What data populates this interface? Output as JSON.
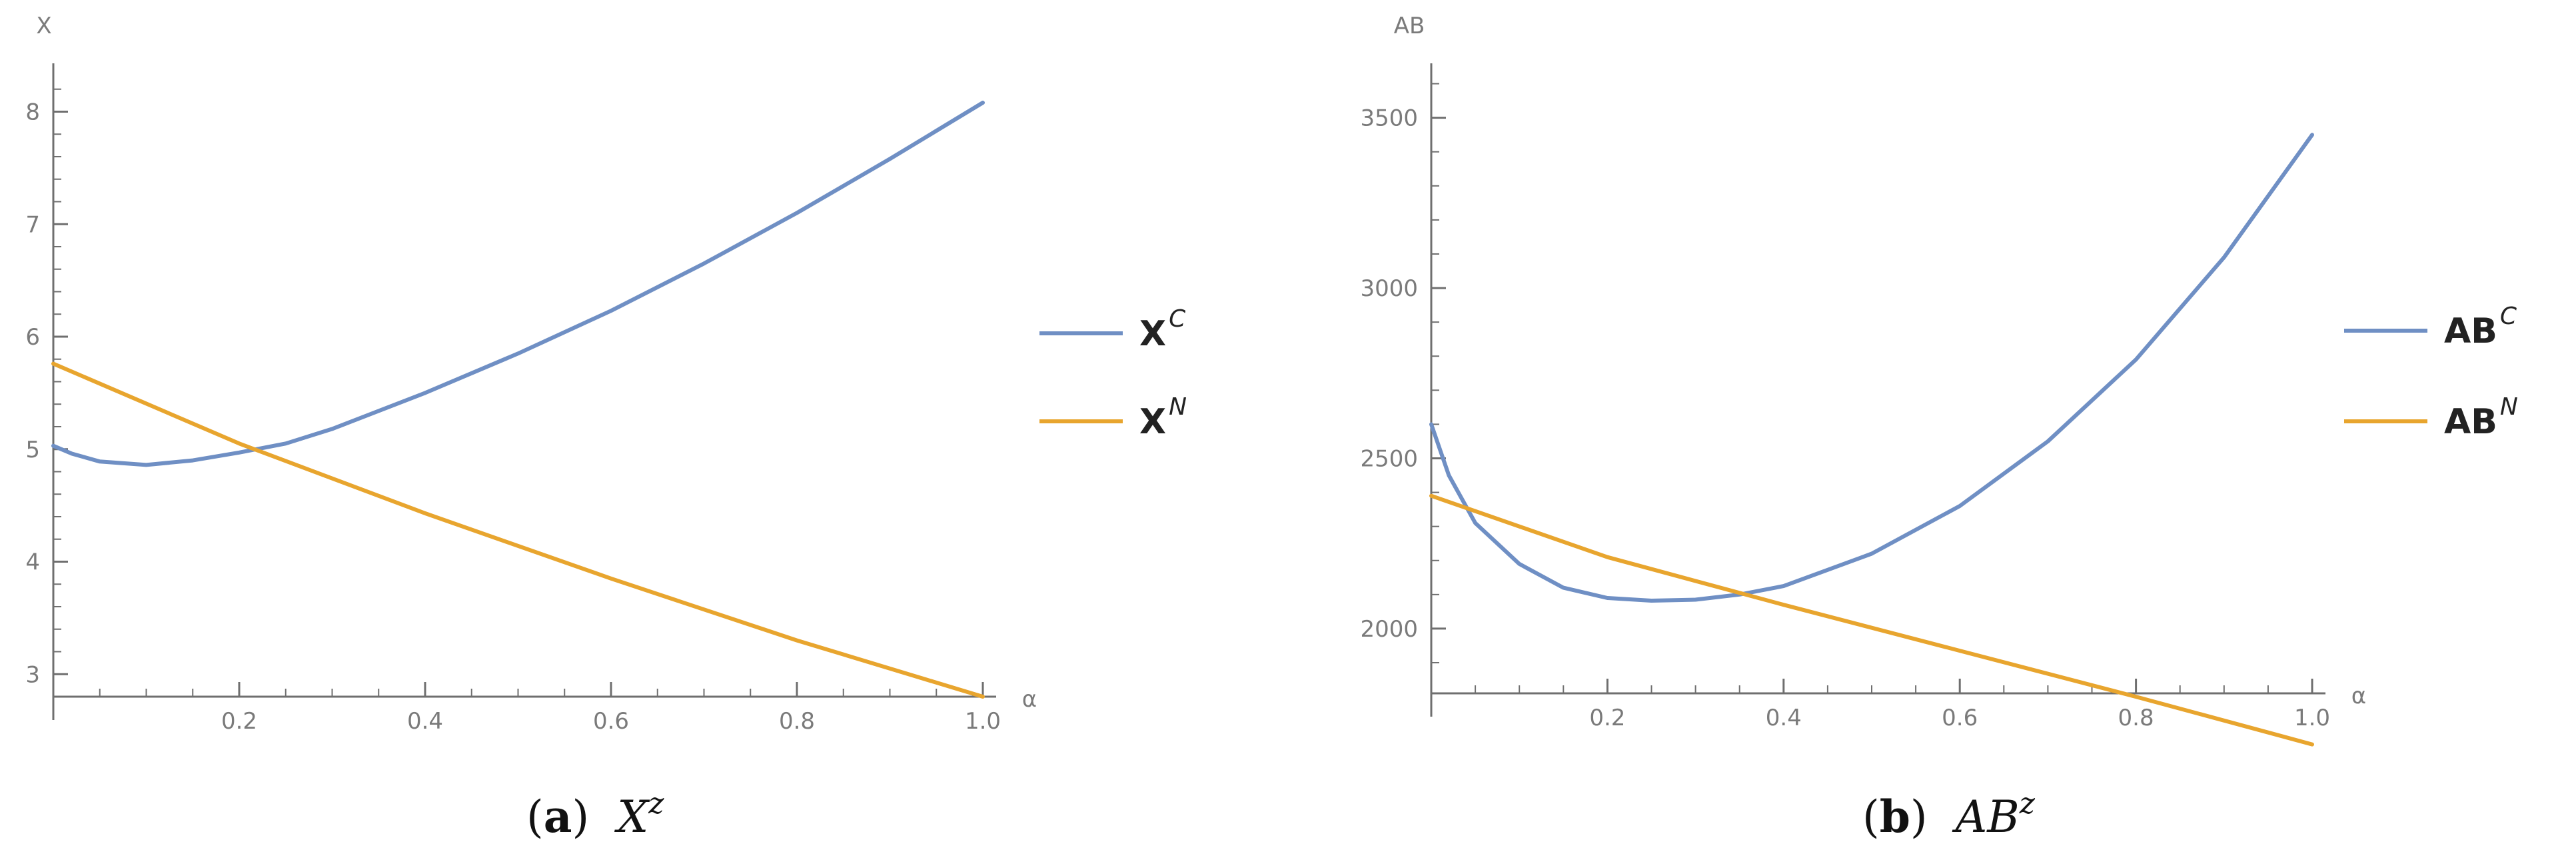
{
  "chart_data": [
    {
      "type": "line",
      "panel_label": "a",
      "caption": {
        "var": "X",
        "sup": "z"
      },
      "ylabel": "X",
      "xlabel": "α",
      "xlim": [
        0,
        1
      ],
      "ylim": [
        2.8,
        8.4
      ],
      "yticks": [
        3,
        4,
        5,
        6,
        7,
        8
      ],
      "ytick_labels": [
        "3",
        "4",
        "5",
        "6",
        "7",
        "8"
      ],
      "xticks": [
        0.2,
        0.4,
        0.6,
        0.8,
        1.0
      ],
      "xtick_labels": [
        "0.2",
        "0.4",
        "0.6",
        "0.8",
        "1.0"
      ],
      "legend_position": "right",
      "series": [
        {
          "name": "X",
          "sup": "C",
          "color": "#6f8fc4",
          "x": [
            0,
            0.02,
            0.05,
            0.1,
            0.15,
            0.2,
            0.25,
            0.3,
            0.4,
            0.5,
            0.6,
            0.7,
            0.8,
            0.9,
            1.0
          ],
          "y": [
            5.03,
            4.96,
            4.89,
            4.86,
            4.9,
            4.97,
            5.05,
            5.18,
            5.5,
            5.85,
            6.23,
            6.65,
            7.1,
            7.58,
            8.08
          ]
        },
        {
          "name": "X",
          "sup": "N",
          "color": "#e8a52e",
          "x": [
            0,
            0.2,
            0.4,
            0.6,
            0.8,
            1.0
          ],
          "y": [
            5.76,
            5.05,
            4.43,
            3.85,
            3.3,
            2.8
          ]
        }
      ]
    },
    {
      "type": "line",
      "panel_label": "b",
      "caption": {
        "var": "AB",
        "sup": "z"
      },
      "ylabel": "AB",
      "xlabel": "α",
      "xlim": [
        0,
        1
      ],
      "ylim": [
        1810,
        3650
      ],
      "yticks": [
        2000,
        2500,
        3000,
        3500
      ],
      "ytick_labels": [
        "2000",
        "2500",
        "3000",
        "3500"
      ],
      "xticks": [
        0.2,
        0.4,
        0.6,
        0.8,
        1.0
      ],
      "xtick_labels": [
        "0.2",
        "0.4",
        "0.6",
        "0.8",
        "1.0"
      ],
      "legend_position": "right",
      "series": [
        {
          "name": "AB",
          "sup": "C",
          "color": "#6f8fc4",
          "x": [
            0,
            0.02,
            0.05,
            0.1,
            0.15,
            0.2,
            0.25,
            0.3,
            0.35,
            0.4,
            0.5,
            0.6,
            0.7,
            0.8,
            0.9,
            1.0
          ],
          "y": [
            2600,
            2450,
            2310,
            2190,
            2120,
            2090,
            2082,
            2085,
            2100,
            2125,
            2220,
            2360,
            2550,
            2790,
            3090,
            3450
          ]
        },
        {
          "name": "AB",
          "sup": "N",
          "color": "#e8a52e",
          "x": [
            0,
            0.2,
            0.4,
            0.6,
            0.8,
            1.0
          ],
          "y": [
            2390,
            2210,
            2070,
            1935,
            1800,
            1660
          ]
        }
      ]
    }
  ]
}
